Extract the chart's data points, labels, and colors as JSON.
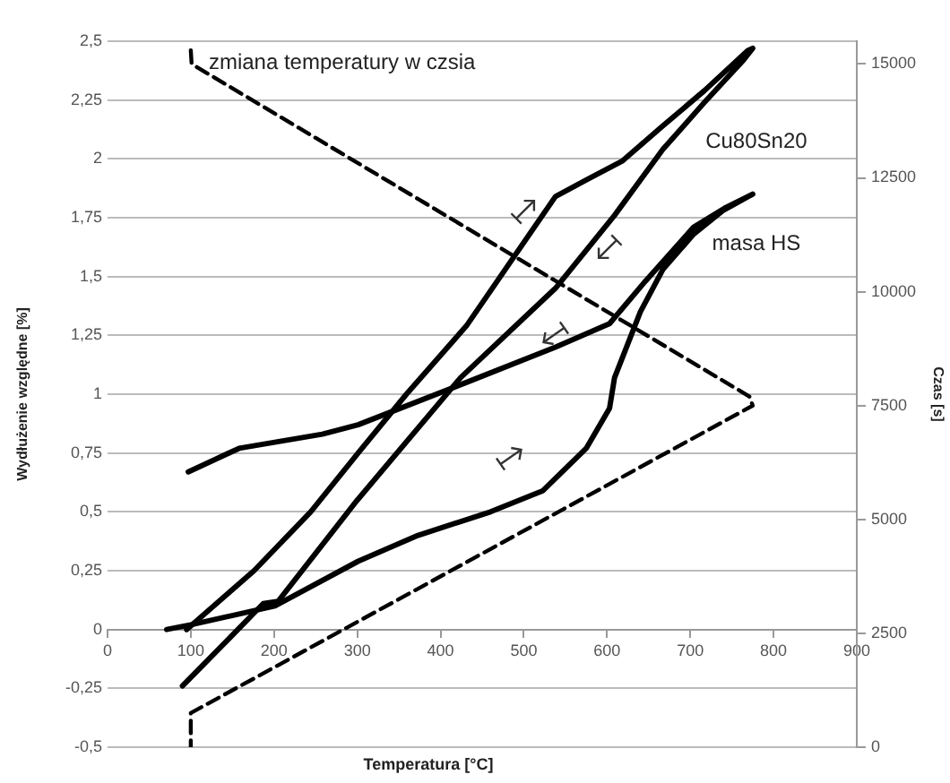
{
  "chart_data": {
    "type": "line",
    "xlabel": "Temperatura [°C]",
    "ylabel": "Wydłużenie względne [%]",
    "y2label": "Czas [s]",
    "xlim": [
      0,
      900
    ],
    "xticks": [
      0,
      100,
      200,
      300,
      400,
      500,
      600,
      700,
      800,
      900
    ],
    "ylim": [
      -0.5,
      2.5
    ],
    "yticks": [
      {
        "value": -0.5,
        "label": "-0,5"
      },
      {
        "value": -0.25,
        "label": "-0,25"
      },
      0,
      {
        "value": 0.25,
        "label": "0,25"
      },
      {
        "value": 0.5,
        "label": "0,5"
      },
      {
        "value": 0.75,
        "label": "0,75"
      },
      1,
      {
        "value": 1.25,
        "label": "1,25"
      },
      {
        "value": 1.5,
        "label": "1,5"
      },
      {
        "value": 1.75,
        "label": "1,75"
      },
      2,
      {
        "value": 2.25,
        "label": "2,25"
      },
      {
        "value": 2.5,
        "label": "2,5"
      }
    ],
    "y2lim": [
      0,
      15500
    ],
    "y2ticks": [
      0,
      2500,
      5000,
      7500,
      10000,
      12500,
      15000
    ],
    "grid": "y",
    "legend": false,
    "marker": "none",
    "series": [
      {
        "name": "Cu80Sn20",
        "color": "#000000",
        "line_style": "solid",
        "x": [
          95,
          176,
          244,
          301,
          359,
          431,
          538,
          575,
          618,
          667,
          717,
          769,
          775,
          764,
          717,
          667,
          609,
          538,
          424,
          300,
          205,
          187,
          140,
          90
        ],
        "values": [
          0,
          0.25,
          0.5,
          0.75,
          1,
          1.29,
          1.84,
          1.91,
          1.99,
          2.14,
          2.29,
          2.46,
          2.47,
          2.42,
          2.24,
          2.04,
          1.76,
          1.45,
          1.07,
          0.55,
          0.12,
          0.11,
          -0.06,
          -0.24
        ]
      },
      {
        "name": "masa HS",
        "color": "#000000",
        "line_style": "solid",
        "x": [
          71,
          100,
          201,
          301,
          373,
          460,
          523,
          575,
          603,
          609,
          640,
          667,
          704,
          739,
          775,
          741,
          704,
          646,
          603,
          538,
          431,
          301,
          258,
          158,
          97
        ],
        "values": [
          0,
          0.02,
          0.1,
          0.29,
          0.4,
          0.5,
          0.59,
          0.77,
          0.94,
          1.07,
          1.35,
          1.53,
          1.68,
          1.78,
          1.85,
          1.79,
          1.71,
          1.48,
          1.3,
          1.2,
          1.05,
          0.87,
          0.83,
          0.77,
          0.67
        ]
      },
      {
        "name": "zmiana temperatury w czsia",
        "axis": "y2",
        "color": "#000000",
        "line_style": "dashed",
        "x": [
          100,
          101,
          771,
          775,
          100,
          100
        ],
        "values": [
          15300,
          15000,
          7700,
          7500,
          750,
          0
        ]
      }
    ]
  }
}
